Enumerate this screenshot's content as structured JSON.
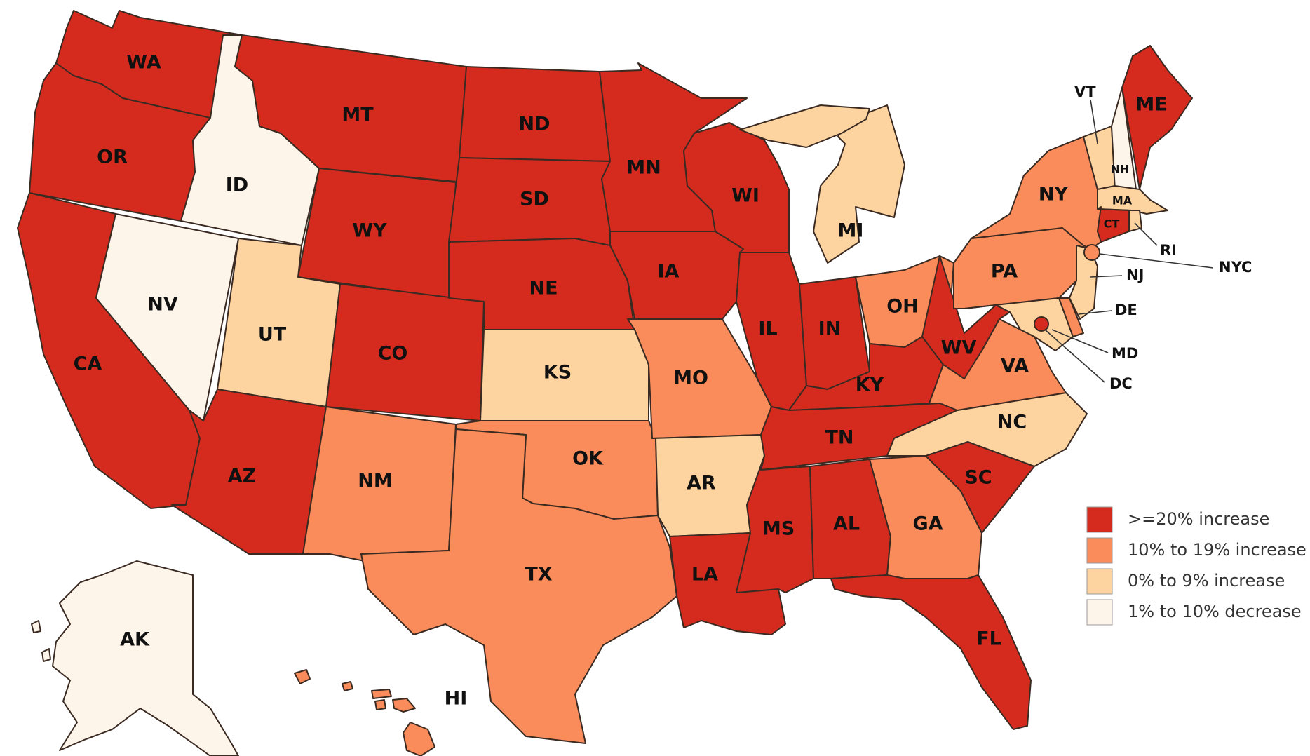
{
  "colors": {
    "cat1": "#d52b1e",
    "cat2": "#f98c5a",
    "cat3": "#fdd4a0",
    "cat4": "#fef5ea"
  },
  "legend": [
    {
      "key": "cat1",
      "label": ">=20% increase"
    },
    {
      "key": "cat2",
      "label": "10% to 19% increase"
    },
    {
      "key": "cat3",
      "label": "0% to 9% increase"
    },
    {
      "key": "cat4",
      "label": "1% to 10% decrease"
    }
  ],
  "states": {
    "WA": {
      "label": "WA",
      "cat": "cat1"
    },
    "OR": {
      "label": "OR",
      "cat": "cat1"
    },
    "CA": {
      "label": "CA",
      "cat": "cat1"
    },
    "ID": {
      "label": "ID",
      "cat": "cat4"
    },
    "NV": {
      "label": "NV",
      "cat": "cat4"
    },
    "MT": {
      "label": "MT",
      "cat": "cat1"
    },
    "WY": {
      "label": "WY",
      "cat": "cat1"
    },
    "UT": {
      "label": "UT",
      "cat": "cat3"
    },
    "AZ": {
      "label": "AZ",
      "cat": "cat1"
    },
    "CO": {
      "label": "CO",
      "cat": "cat1"
    },
    "NM": {
      "label": "NM",
      "cat": "cat2"
    },
    "ND": {
      "label": "ND",
      "cat": "cat1"
    },
    "SD": {
      "label": "SD",
      "cat": "cat1"
    },
    "NE": {
      "label": "NE",
      "cat": "cat1"
    },
    "KS": {
      "label": "KS",
      "cat": "cat3"
    },
    "OK": {
      "label": "OK",
      "cat": "cat2"
    },
    "TX": {
      "label": "TX",
      "cat": "cat2"
    },
    "MN": {
      "label": "MN",
      "cat": "cat1"
    },
    "IA": {
      "label": "IA",
      "cat": "cat1"
    },
    "MO": {
      "label": "MO",
      "cat": "cat2"
    },
    "AR": {
      "label": "AR",
      "cat": "cat3"
    },
    "LA": {
      "label": "LA",
      "cat": "cat1"
    },
    "WI": {
      "label": "WI",
      "cat": "cat1"
    },
    "IL": {
      "label": "IL",
      "cat": "cat1"
    },
    "MI": {
      "label": "MI",
      "cat": "cat3"
    },
    "IN": {
      "label": "IN",
      "cat": "cat1"
    },
    "OH": {
      "label": "OH",
      "cat": "cat2"
    },
    "KY": {
      "label": "KY",
      "cat": "cat1"
    },
    "TN": {
      "label": "TN",
      "cat": "cat1"
    },
    "MS": {
      "label": "MS",
      "cat": "cat1"
    },
    "AL": {
      "label": "AL",
      "cat": "cat1"
    },
    "GA": {
      "label": "GA",
      "cat": "cat2"
    },
    "FL": {
      "label": "FL",
      "cat": "cat1"
    },
    "SC": {
      "label": "SC",
      "cat": "cat1"
    },
    "NC": {
      "label": "NC",
      "cat": "cat3"
    },
    "VA": {
      "label": "VA",
      "cat": "cat2"
    },
    "WV": {
      "label": "WV",
      "cat": "cat1"
    },
    "PA": {
      "label": "PA",
      "cat": "cat2"
    },
    "NY": {
      "label": "NY",
      "cat": "cat2"
    },
    "VT": {
      "label": "VT",
      "cat": "cat3"
    },
    "NH": {
      "label": "NH",
      "cat": "cat4"
    },
    "ME": {
      "label": "ME",
      "cat": "cat1"
    },
    "MA": {
      "label": "MA",
      "cat": "cat3"
    },
    "CT": {
      "label": "CT",
      "cat": "cat1"
    },
    "RI": {
      "label": "RI",
      "cat": "cat3"
    },
    "NJ": {
      "label": "NJ",
      "cat": "cat3"
    },
    "DE": {
      "label": "DE",
      "cat": "cat2"
    },
    "MD": {
      "label": "MD",
      "cat": "cat3"
    },
    "DC": {
      "label": "DC",
      "cat": "cat1"
    },
    "NYC": {
      "label": "NYC",
      "cat": "cat2"
    },
    "AK": {
      "label": "AK",
      "cat": "cat4"
    },
    "HI": {
      "label": "HI",
      "cat": "cat2"
    }
  }
}
